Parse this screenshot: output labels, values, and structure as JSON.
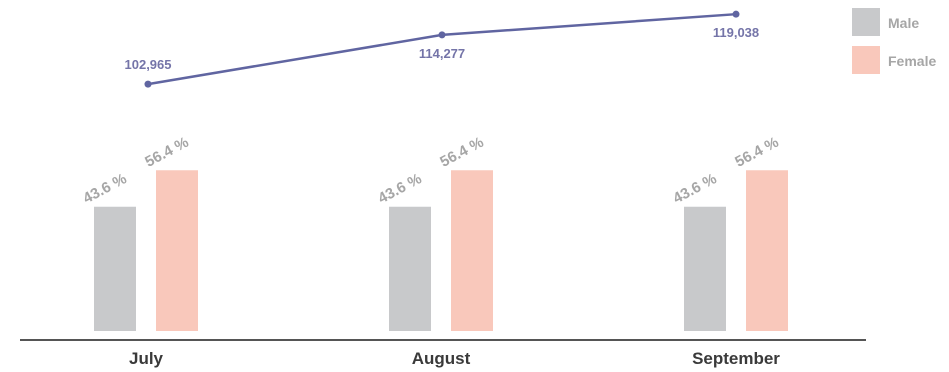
{
  "colors": {
    "male": "#c8c9cb",
    "female": "#f9c8bb",
    "line": "#6065a1",
    "axis": "#555555"
  },
  "legend": {
    "male": "Male",
    "female": "Female"
  },
  "chart_data": {
    "type": "bar+line",
    "categories": [
      "July",
      "August",
      "September"
    ],
    "series": [
      {
        "name": "Male",
        "type": "bar",
        "values": [
          43.6,
          43.6,
          43.6
        ],
        "labels": [
          "43.6 %",
          "43.6 %",
          "43.6 %"
        ]
      },
      {
        "name": "Female",
        "type": "bar",
        "values": [
          56.4,
          56.4,
          56.4
        ],
        "labels": [
          "56.4 %",
          "56.4 %",
          "56.4 %"
        ]
      }
    ],
    "line": {
      "values": [
        102965,
        114277,
        119038
      ],
      "labels": [
        "102,965",
        "114,277",
        "119,038"
      ]
    },
    "legend_position": "top-right",
    "grid": false
  }
}
